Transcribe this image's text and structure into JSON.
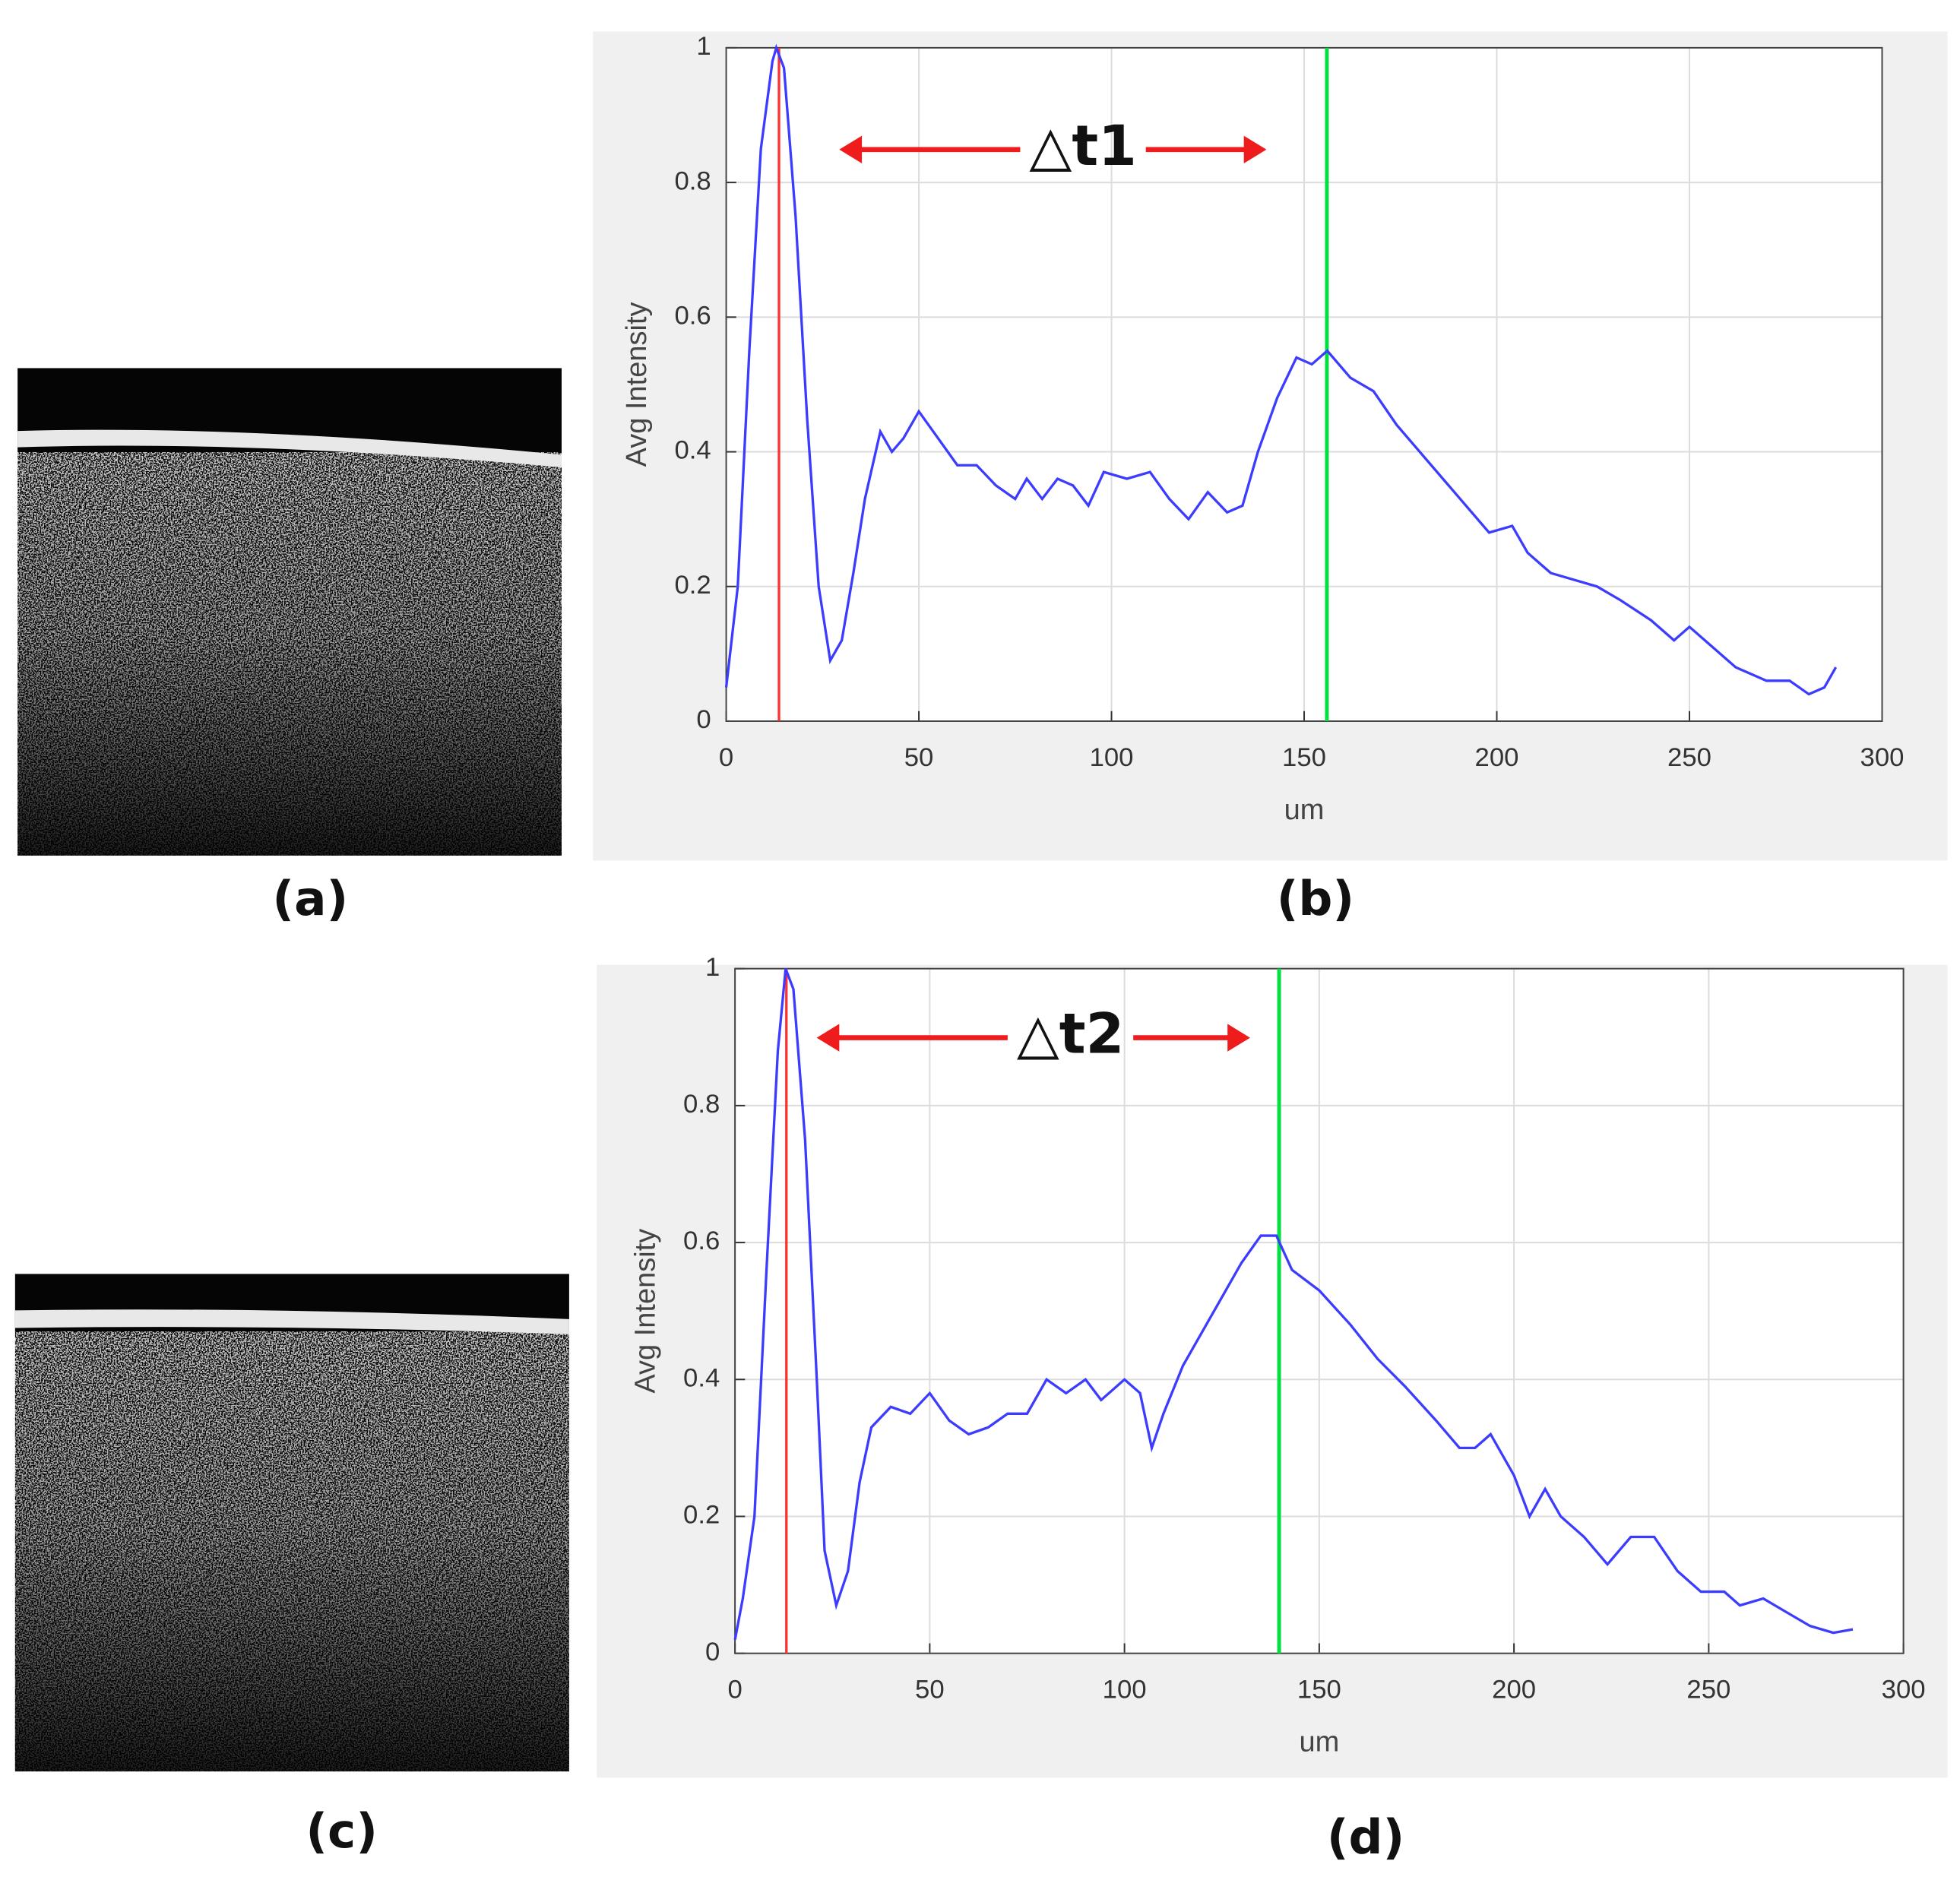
{
  "panel_labels": [
    "(a)",
    "(b)",
    "(c)",
    "(d)"
  ],
  "chart_data": [
    {
      "type": "line",
      "xlabel": "um",
      "ylabel": "Avg Intensity",
      "annotation": "△t1",
      "xlim": [
        0,
        300
      ],
      "ylim": [
        0,
        1
      ],
      "xticks": [
        0,
        50,
        100,
        150,
        200,
        250,
        300
      ],
      "yticks": [
        0,
        0.2,
        0.4,
        0.6,
        0.8,
        1
      ],
      "grid": true,
      "color": "#3c3cff",
      "x": [
        0,
        3,
        6,
        9,
        12,
        13,
        15,
        18,
        21,
        24,
        27,
        30,
        33,
        36,
        40,
        43,
        46,
        50,
        55,
        60,
        65,
        70,
        75,
        78,
        82,
        86,
        90,
        94,
        98,
        104,
        110,
        115,
        120,
        125,
        130,
        134,
        138,
        143,
        148,
        152,
        156,
        162,
        168,
        174,
        180,
        186,
        192,
        198,
        204,
        208,
        214,
        220,
        226,
        232,
        240,
        246,
        250,
        256,
        262,
        270,
        276,
        281,
        285,
        288
      ],
      "values": [
        0.05,
        0.2,
        0.55,
        0.85,
        0.98,
        1.0,
        0.97,
        0.75,
        0.45,
        0.2,
        0.09,
        0.12,
        0.22,
        0.33,
        0.43,
        0.4,
        0.42,
        0.46,
        0.42,
        0.38,
        0.38,
        0.35,
        0.33,
        0.36,
        0.33,
        0.36,
        0.35,
        0.32,
        0.37,
        0.36,
        0.37,
        0.33,
        0.3,
        0.34,
        0.31,
        0.32,
        0.4,
        0.48,
        0.54,
        0.53,
        0.55,
        0.51,
        0.49,
        0.44,
        0.4,
        0.36,
        0.32,
        0.28,
        0.29,
        0.25,
        0.22,
        0.21,
        0.2,
        0.18,
        0.15,
        0.12,
        0.14,
        0.11,
        0.08,
        0.06,
        0.06,
        0.04,
        0.05,
        0.08
      ],
      "vlines": [
        {
          "x": 13.7,
          "color": "#ff3030"
        },
        {
          "x": 155.9,
          "color": "#00e040"
        }
      ]
    },
    {
      "type": "line",
      "xlabel": "um",
      "ylabel": "Avg Intensity",
      "annotation": "△t2",
      "xlim": [
        0,
        300
      ],
      "ylim": [
        0,
        1
      ],
      "xticks": [
        0,
        50,
        100,
        150,
        200,
        250,
        300
      ],
      "yticks": [
        0,
        0.2,
        0.4,
        0.6,
        0.8,
        1
      ],
      "grid": true,
      "color": "#3c3cff",
      "x": [
        0,
        2,
        5,
        8,
        11,
        13,
        15,
        18,
        21,
        23,
        26,
        29,
        32,
        35,
        40,
        45,
        50,
        55,
        60,
        65,
        70,
        75,
        80,
        85,
        90,
        94,
        100,
        104,
        107,
        110,
        115,
        120,
        125,
        130,
        135,
        139,
        143,
        150,
        158,
        165,
        172,
        180,
        186,
        190,
        194,
        200,
        204,
        208,
        212,
        218,
        224,
        230,
        236,
        242,
        248,
        254,
        258,
        264,
        270,
        276,
        282,
        287
      ],
      "values": [
        0.02,
        0.08,
        0.2,
        0.55,
        0.88,
        1.0,
        0.97,
        0.75,
        0.4,
        0.15,
        0.07,
        0.12,
        0.25,
        0.33,
        0.36,
        0.35,
        0.38,
        0.34,
        0.32,
        0.33,
        0.35,
        0.35,
        0.4,
        0.38,
        0.4,
        0.37,
        0.4,
        0.38,
        0.3,
        0.35,
        0.42,
        0.47,
        0.52,
        0.57,
        0.61,
        0.61,
        0.56,
        0.53,
        0.48,
        0.43,
        0.39,
        0.34,
        0.3,
        0.3,
        0.32,
        0.26,
        0.2,
        0.24,
        0.2,
        0.17,
        0.13,
        0.17,
        0.17,
        0.12,
        0.09,
        0.09,
        0.07,
        0.08,
        0.06,
        0.04,
        0.03,
        0.035
      ],
      "vlines": [
        {
          "x": 13.2,
          "color": "#ff3030"
        },
        {
          "x": 139.7,
          "color": "#00e040"
        }
      ]
    }
  ]
}
